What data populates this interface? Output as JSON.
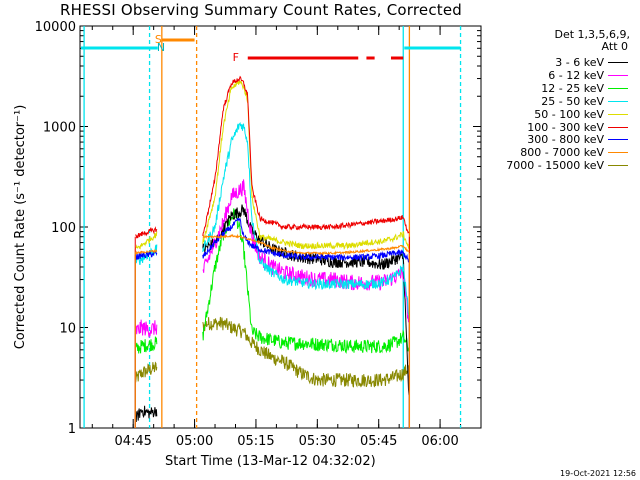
{
  "title": "RHESSI Observing Summary Count Rates, Corrected",
  "legend": {
    "header_line1": "Det 1,3,5,6,9,",
    "header_line2": "Att 0",
    "entries": [
      {
        "label": "3 - 6 keV",
        "color": "#000000"
      },
      {
        "label": "6 - 12 keV",
        "color": "#ff00ff"
      },
      {
        "label": "12 - 25 keV",
        "color": "#00ee00"
      },
      {
        "label": "25 - 50 keV",
        "color": "#00e5ee"
      },
      {
        "label": "50 - 100 keV",
        "color": "#dddd00"
      },
      {
        "label": "100 - 300 keV",
        "color": "#ee0000"
      },
      {
        "label": "300 - 800 keV",
        "color": "#0000ff"
      },
      {
        "label": "800 - 7000 keV",
        "color": "#ff8800"
      },
      {
        "label": "7000 - 15000 keV",
        "color": "#888800"
      }
    ]
  },
  "xlabel": "Start Time (13-Mar-12 04:32:02)",
  "ylabel": "Corrected Count Rate (s⁻¹ detector⁻¹)",
  "timestamp": "19-Oct-2021 12:56",
  "flag_labels": {
    "saa": "S",
    "night": "N",
    "flare": "F"
  },
  "chart_data": {
    "type": "line",
    "title": "RHESSI Observing Summary Count Rates, Corrected",
    "xlabel": "Start Time (13-Mar-12 04:32:02)",
    "ylabel": "Corrected Count Rate (s^-1 detector^-1)",
    "y_scale": "log",
    "ylim": [
      1,
      10000
    ],
    "xlim_minutes": [
      0,
      98
    ],
    "x_tick_labels": [
      "04:45",
      "05:00",
      "05:15",
      "05:30",
      "05:45",
      "06:00"
    ],
    "x_tick_minutes": [
      13,
      28,
      43,
      58,
      73,
      88
    ],
    "y_tick_labels": [
      "1",
      "10",
      "100",
      "1000",
      "10000"
    ],
    "series": [
      {
        "name": "3 - 6 keV",
        "x": [
          13.5,
          15,
          17,
          18.8,
          30,
          33,
          35,
          37,
          40,
          42,
          44,
          47,
          50,
          54,
          58,
          62,
          66,
          70,
          74,
          77,
          79,
          80.5
        ],
        "y": [
          1.2,
          1.5,
          1.4,
          1.5,
          60,
          70,
          95,
          130,
          150,
          90,
          75,
          60,
          55,
          50,
          48,
          45,
          45,
          45,
          42,
          48,
          50,
          1.5
        ]
      },
      {
        "name": "6 - 12 keV",
        "x": [
          13.5,
          15,
          17,
          18.8,
          30,
          33,
          35,
          37,
          40,
          42,
          44,
          47,
          50,
          54,
          58,
          62,
          66,
          70,
          74,
          77,
          79,
          80.5
        ],
        "y": [
          9,
          10,
          9.5,
          10,
          35,
          70,
          110,
          200,
          250,
          80,
          50,
          40,
          35,
          32,
          30,
          30,
          28,
          28,
          28,
          32,
          35,
          10
        ]
      },
      {
        "name": "12 - 25 keV",
        "x": [
          13.5,
          15,
          17,
          18.8,
          30,
          33,
          35,
          37,
          38,
          40,
          42,
          44,
          47,
          50,
          54,
          58,
          62,
          66,
          70,
          74,
          77,
          79,
          80.5
        ],
        "y": [
          6,
          6.5,
          6.8,
          7,
          8,
          40,
          85,
          125,
          140,
          60,
          9,
          8,
          7.5,
          7,
          7,
          6.8,
          6.8,
          6.5,
          6.5,
          6.5,
          7,
          8,
          6
        ]
      },
      {
        "name": "25 - 50 keV",
        "x": [
          13.5,
          15,
          17,
          18.8,
          30,
          33,
          35,
          37,
          39,
          40,
          41,
          42,
          44,
          47,
          50,
          54,
          58,
          62,
          66,
          70,
          74,
          77,
          79,
          80.5
        ],
        "y": [
          45,
          48,
          55,
          60,
          60,
          100,
          300,
          700,
          1050,
          1000,
          700,
          120,
          45,
          35,
          30,
          28,
          27,
          27,
          27,
          27,
          28,
          32,
          40,
          12
        ]
      },
      {
        "name": "50 - 100 keV",
        "x": [
          13.5,
          15,
          17,
          18.8,
          30,
          33,
          35,
          37,
          39,
          40,
          41,
          42,
          44,
          47,
          50,
          54,
          58,
          62,
          66,
          70,
          74,
          77,
          79,
          80.5
        ],
        "y": [
          60,
          65,
          75,
          85,
          70,
          200,
          1000,
          2400,
          2800,
          2500,
          1800,
          200,
          80,
          75,
          70,
          65,
          65,
          65,
          65,
          70,
          72,
          78,
          85,
          60
        ]
      },
      {
        "name": "100 - 300 keV",
        "x": [
          13.5,
          15,
          17,
          18.8,
          30,
          33,
          35,
          37,
          39,
          40,
          41,
          42,
          44,
          47,
          50,
          54,
          58,
          62,
          66,
          70,
          74,
          77,
          79,
          80.5
        ],
        "y": [
          80,
          85,
          90,
          95,
          80,
          300,
          1500,
          2700,
          3000,
          2700,
          2000,
          250,
          120,
          110,
          100,
          100,
          100,
          100,
          105,
          110,
          115,
          120,
          125,
          80
        ]
      },
      {
        "name": "300 - 800 keV",
        "x": [
          13.5,
          15,
          17,
          18.8,
          30,
          33,
          35,
          37,
          39,
          40,
          42,
          44,
          47,
          50,
          54,
          58,
          62,
          66,
          70,
          74,
          77,
          79,
          80.5
        ],
        "y": [
          50,
          52,
          53,
          55,
          50,
          70,
          85,
          100,
          120,
          80,
          65,
          60,
          55,
          52,
          50,
          50,
          50,
          50,
          50,
          52,
          55,
          55,
          45
        ]
      },
      {
        "name": "800 - 7000 keV",
        "x": [
          13.5,
          15,
          17,
          18.8,
          30,
          33,
          35,
          37,
          39,
          40,
          42,
          44,
          47,
          50,
          54,
          58,
          62,
          66,
          70,
          74,
          77,
          79,
          80.5
        ],
        "y": [
          55,
          56,
          57,
          58,
          80,
          80,
          80,
          82,
          80,
          78,
          75,
          70,
          62,
          58,
          55,
          55,
          55,
          56,
          58,
          60,
          62,
          65,
          55
        ]
      },
      {
        "name": "7000 - 15000 keV",
        "x": [
          13.5,
          15,
          17,
          18.8,
          31,
          33,
          35,
          37,
          40,
          42,
          44,
          47,
          50,
          54,
          58,
          62,
          66,
          70,
          74,
          77,
          79,
          80.5
        ],
        "y": [
          3,
          3.5,
          3.8,
          4,
          11,
          11,
          11,
          10,
          9,
          7,
          6,
          5,
          4.5,
          3.5,
          3,
          3,
          3,
          3,
          3,
          3.2,
          3.5,
          4
        ]
      }
    ],
    "flags": {
      "saa": [
        [
          0,
          19
        ],
        [
          79,
          93
        ]
      ],
      "attenuator": [
        [
          20,
          28
        ]
      ],
      "flare": [
        [
          41,
          68
        ],
        [
          70,
          72
        ],
        [
          76,
          79
        ]
      ],
      "night": [
        [
          19,
          19.5
        ]
      ]
    },
    "vertical_markers": [
      {
        "minute": 1,
        "color": "#00e5ee",
        "style": "solid"
      },
      {
        "minute": 17,
        "color": "#00e5ee",
        "style": "dashed"
      },
      {
        "minute": 20,
        "color": "#ff8800",
        "style": "solid"
      },
      {
        "minute": 28.5,
        "color": "#ff8800",
        "style": "dashed"
      },
      {
        "minute": 79,
        "color": "#00e5ee",
        "style": "solid"
      },
      {
        "minute": 80.5,
        "color": "#ff8800",
        "style": "solid"
      },
      {
        "minute": 93,
        "color": "#00e5ee",
        "style": "dashed"
      }
    ]
  }
}
